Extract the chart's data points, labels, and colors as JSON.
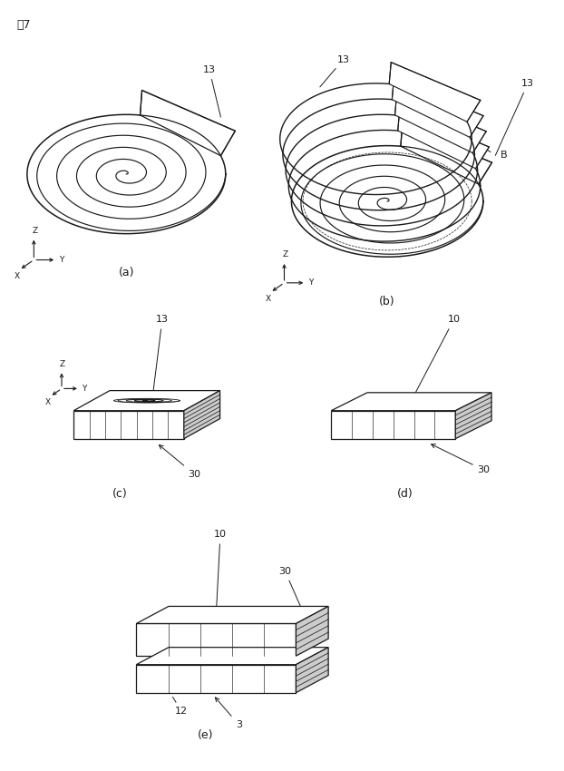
{
  "bg_color": "#ffffff",
  "line_color": "#1a1a1a",
  "title": "図7",
  "fig_a_label": "(a)",
  "fig_b_label": "(b)",
  "fig_c_label": "(c)",
  "fig_d_label": "(d)",
  "fig_e_label": "(e)",
  "spiral_turns": 5,
  "spiral_lw": 1.0,
  "outer_lw": 1.2,
  "tab_lw": 1.0,
  "axes_lw": 0.8,
  "label_fontsize": 8,
  "subfig_fontsize": 9,
  "gray_right": "#c8c8c8",
  "gray_top": "#e8e8e8"
}
